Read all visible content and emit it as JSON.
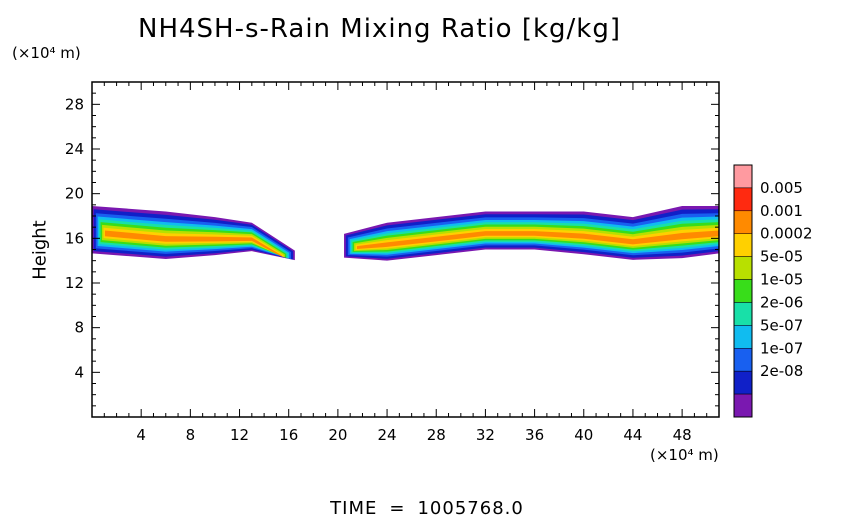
{
  "chart_data": {
    "type": "heatmap",
    "title": "NH4SH-s-Rain Mixing Ratio [kg/kg]",
    "ylabel": "Height",
    "y_unit": "(×10⁴ m)",
    "x_unit": "(×10⁴ m)",
    "xlim": [
      0,
      51
    ],
    "ylim": [
      0,
      30
    ],
    "x_ticks": [
      4,
      8,
      12,
      16,
      20,
      24,
      28,
      32,
      36,
      40,
      44,
      48
    ],
    "y_ticks": [
      4,
      8,
      12,
      16,
      20,
      24,
      28
    ],
    "colorbar": {
      "levels": [
        "0.005",
        "0.001",
        "0.0002",
        "5e-05",
        "1e-05",
        "2e-06",
        "5e-07",
        "1e-07",
        "2e-08"
      ],
      "colors": [
        "#ff9aa0",
        "#ff2a10",
        "#ff8a00",
        "#ffd000",
        "#b8e000",
        "#38dd1a",
        "#18e0a8",
        "#10bcf0",
        "#1860f0",
        "#1020c8",
        "#7a18b0"
      ]
    },
    "bands": [
      {
        "name": "left-cloud",
        "x": [
          0,
          6,
          10,
          13,
          16.5
        ],
        "y_top": [
          19.5,
          19.0,
          18.5,
          18.0,
          15.5
        ],
        "y_bottom": [
          14.5,
          14.0,
          14.5,
          15.0,
          14.5
        ]
      },
      {
        "name": "right-cloud",
        "x": [
          20.5,
          24,
          28,
          32,
          36,
          40,
          44,
          48,
          51
        ],
        "y_top": [
          17.0,
          18.0,
          18.5,
          19.0,
          19.0,
          19.0,
          18.5,
          19.5,
          19.5
        ],
        "y_bottom": [
          14.5,
          14.0,
          14.5,
          15.0,
          15.0,
          14.5,
          14.0,
          14.0,
          14.5
        ]
      }
    ]
  },
  "time_label": "TIME",
  "time_eq": "=",
  "time_value": "1005768.0"
}
